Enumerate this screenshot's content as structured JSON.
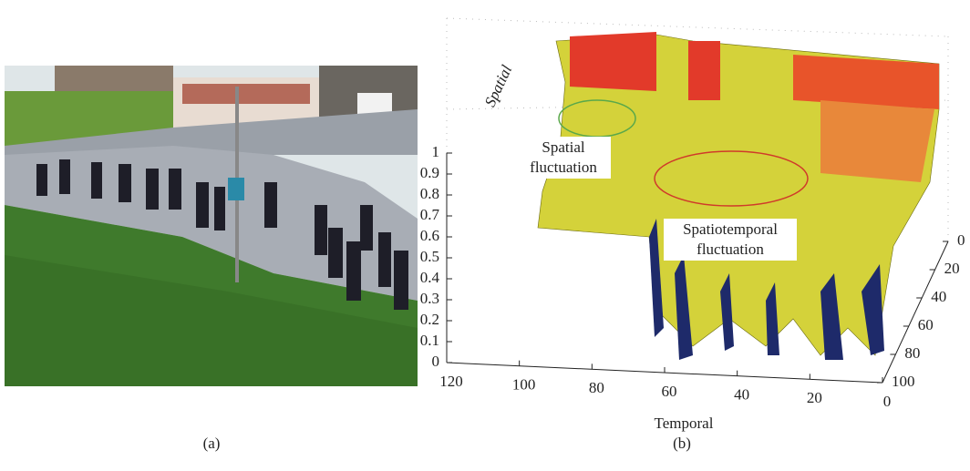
{
  "panel_a": {
    "caption": "(a)"
  },
  "panel_b": {
    "caption": "(b)",
    "vertical_ticks": [
      0,
      0.1,
      0.2,
      0.3,
      0.4,
      0.5,
      0.6,
      0.7,
      0.8,
      0.9,
      1
    ],
    "temporal_ticks": [
      120,
      100,
      80,
      60,
      40,
      20,
      0
    ],
    "spatial_ticks": [
      0,
      20,
      40,
      60,
      80,
      100
    ],
    "temporal_label": "Temporal",
    "spatial_label": "Spatial",
    "annotations": [
      "Spatial fluctuation",
      "Spatiotemporal fluctuation"
    ]
  }
}
